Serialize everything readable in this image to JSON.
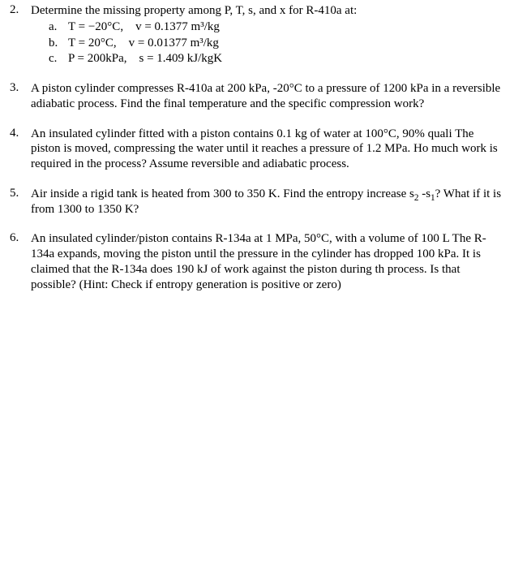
{
  "questions": [
    {
      "num": "2.",
      "prompt": "Determine the missing property among P, T, s, and x for R-410a at:",
      "subs": [
        {
          "label": "a.",
          "text": "T = −20°C, v = 0.1377 m³/kg"
        },
        {
          "label": "b.",
          "text": "T = 20°C, v = 0.01377 m³/kg"
        },
        {
          "label": "c.",
          "text": "P = 200kPa, s = 1.409 kJ/kgK"
        }
      ]
    },
    {
      "num": "3.",
      "prompt": "A piston cylinder compresses R-410a at 200 kPa, -20°C to a pressure of 1200 kPa in a reversible adiabatic process. Find the final temperature and the specific compression work?"
    },
    {
      "num": "4.",
      "prompt": "An insulated cylinder fitted with a piston contains 0.1 kg of water at 100°C, 90% quali The piston is moved, compressing the water until it reaches a pressure of 1.2 MPa. Ho much work is required in the process? Assume reversible and adiabatic process."
    },
    {
      "num": "5.",
      "prompt_pre": "Air inside a rigid tank is heated from 300 to 350 K. Find the entropy increase s",
      "prompt_sub1": "2",
      "prompt_mid": " -s",
      "prompt_sub2": "1",
      "prompt_post": "? What if it is from 1300 to 1350 K?"
    },
    {
      "num": "6.",
      "prompt": "An insulated cylinder/piston contains R-134a at 1 MPa, 50°C, with a volume of 100 L The R-134a expands, moving the piston until the pressure in the cylinder has dropped 100 kPa. It is claimed that the R-134a does 190 kJ of work against the piston during th process. Is that possible? (Hint: Check if entropy generation is positive or zero)"
    }
  ]
}
